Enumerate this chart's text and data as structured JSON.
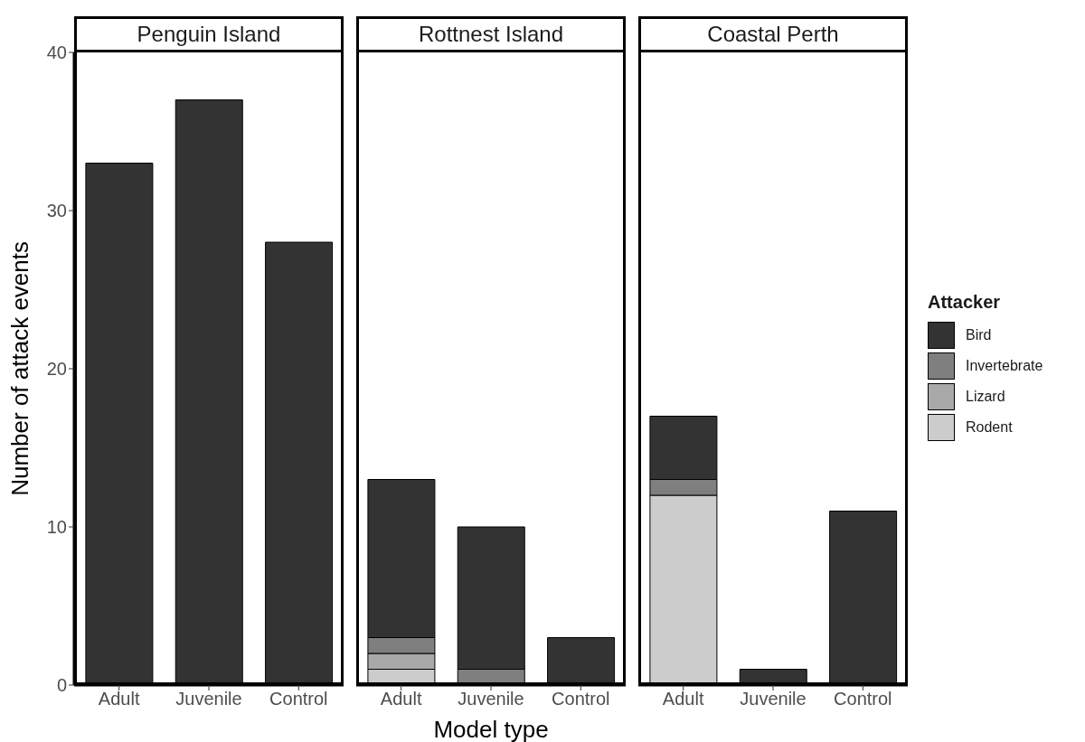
{
  "chart_data": [
    {
      "type": "bar",
      "title": "Penguin Island",
      "categories": [
        "Adult",
        "Juvenile",
        "Control"
      ],
      "stacked": true,
      "ylim": [
        0,
        40
      ],
      "yticks": [
        0,
        10,
        20,
        30,
        40
      ],
      "ylabel": "Number of attack events",
      "legend": false,
      "series": [
        {
          "color": "#cccccc",
          "values": [
            0,
            0,
            0
          ]
        },
        {
          "color": "#a9a9a9",
          "values": [
            0,
            0,
            0
          ]
        },
        {
          "color": "#7f7f7f",
          "values": [
            0,
            0,
            0
          ]
        },
        {
          "color": "#333333",
          "values": [
            33,
            37,
            28
          ]
        }
      ]
    },
    {
      "type": "bar",
      "title": "Rottnest Island",
      "categories": [
        "Adult",
        "Juvenile",
        "Control"
      ],
      "stacked": true,
      "ylim": [
        0,
        40
      ],
      "yticks": [
        0,
        10,
        20,
        30,
        40
      ],
      "tick_labels": "x",
      "xlabel": "Model type",
      "legend": false,
      "series": [
        {
          "color": "#cccccc",
          "values": [
            1,
            0,
            0
          ]
        },
        {
          "color": "#a9a9a9",
          "values": [
            1,
            0,
            0
          ]
        },
        {
          "color": "#7f7f7f",
          "values": [
            1,
            1,
            0
          ]
        },
        {
          "color": "#333333",
          "values": [
            10,
            9,
            3
          ]
        }
      ]
    },
    {
      "type": "bar",
      "title": "Coastal Perth",
      "categories": [
        "Adult",
        "Juvenile",
        "Control"
      ],
      "stacked": true,
      "ylim": [
        0,
        40
      ],
      "yticks": [
        0,
        10,
        20,
        30,
        40
      ],
      "tick_labels": "x",
      "legend": "right",
      "legend_title": "Attacker",
      "series": [
        {
          "name": "Rodent",
          "color": "#cccccc",
          "values": [
            12,
            0,
            0
          ]
        },
        {
          "name": "Lizard",
          "color": "#a9a9a9",
          "values": [
            0,
            0,
            0
          ]
        },
        {
          "name": "Invertebrate",
          "color": "#7f7f7f",
          "values": [
            1,
            0,
            0
          ]
        },
        {
          "name": "Bird",
          "color": "#333333",
          "values": [
            4,
            1,
            11
          ]
        }
      ]
    }
  ]
}
